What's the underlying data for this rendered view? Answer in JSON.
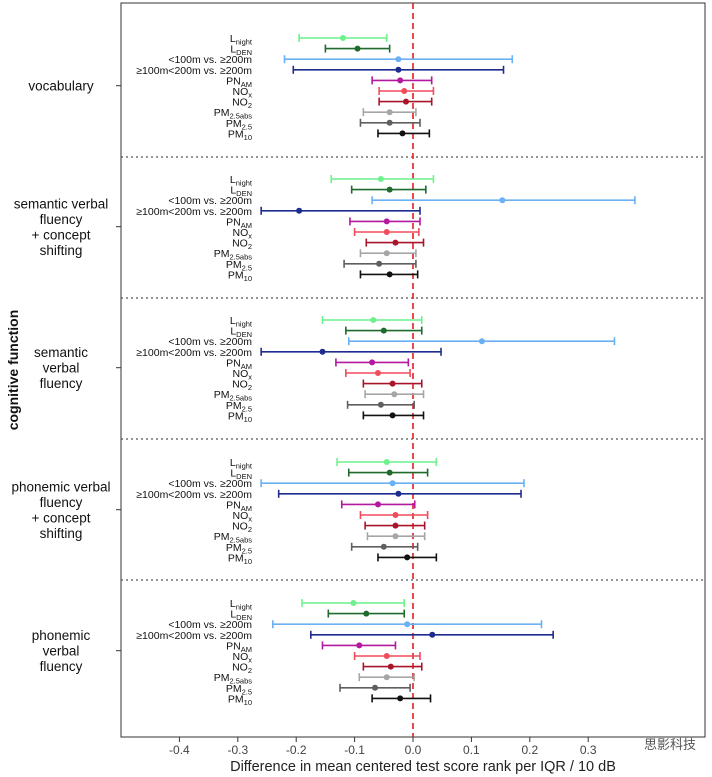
{
  "chart_data": {
    "type": "forest",
    "xlabel": "Difference in mean centered test score rank per IQR / 10 dB",
    "ylabel": "cognitive function",
    "xlim": [
      -0.5,
      0.5
    ],
    "xticks": [
      -0.4,
      -0.3,
      -0.2,
      -0.1,
      0.0,
      0.1,
      0.2,
      0.3
    ],
    "reference_line": 0,
    "exposures": [
      {
        "main": "L",
        "sub": "night",
        "color": "#6cf18c"
      },
      {
        "main": "L",
        "sub": "DEN",
        "color": "#1e6b2c"
      },
      {
        "main": "<100m vs. ≥200m",
        "sub": "",
        "color": "#6ab0f5"
      },
      {
        "main": "≥100m<200m vs. ≥200m",
        "sub": "",
        "color": "#1f2c8f"
      },
      {
        "main": "PN",
        "sub": "AM",
        "color": "#b4189e"
      },
      {
        "main": "NO",
        "sub": "x",
        "color": "#f04d5c"
      },
      {
        "main": "NO",
        "sub": "2",
        "color": "#a8152b"
      },
      {
        "main": "PM",
        "sub": "2.5abs",
        "color": "#a6a6a6"
      },
      {
        "main": "PM",
        "sub": "2.5",
        "color": "#5f5f5f"
      },
      {
        "main": "PM",
        "sub": "10",
        "color": "#111111"
      }
    ],
    "groups": [
      {
        "name": "vocabulary",
        "estimates": [
          -0.12,
          -0.095,
          -0.025,
          -0.025,
          -0.022,
          -0.015,
          -0.012,
          -0.04,
          -0.04,
          -0.018
        ],
        "ci_low": [
          -0.195,
          -0.15,
          -0.22,
          -0.205,
          -0.07,
          -0.058,
          -0.058,
          -0.085,
          -0.09,
          -0.06
        ],
        "ci_high": [
          -0.045,
          -0.04,
          0.17,
          0.155,
          0.032,
          0.035,
          0.032,
          0.005,
          0.012,
          0.028
        ]
      },
      {
        "name": "semantic verbal fluency + concept shifting",
        "estimates": [
          -0.055,
          -0.04,
          0.153,
          -0.195,
          -0.045,
          -0.045,
          -0.03,
          -0.045,
          -0.058,
          -0.04
        ],
        "ci_low": [
          -0.14,
          -0.105,
          -0.07,
          -0.26,
          -0.108,
          -0.1,
          -0.08,
          -0.09,
          -0.118,
          -0.09
        ],
        "ci_high": [
          0.035,
          0.022,
          0.38,
          0.012,
          0.012,
          0.01,
          0.018,
          0.005,
          0.005,
          0.008
        ]
      },
      {
        "name": "semantic verbal fluency",
        "estimates": [
          -0.068,
          -0.05,
          0.118,
          -0.155,
          -0.07,
          -0.06,
          -0.035,
          -0.032,
          -0.055,
          -0.035
        ],
        "ci_low": [
          -0.155,
          -0.115,
          -0.11,
          -0.26,
          -0.132,
          -0.115,
          -0.085,
          -0.082,
          -0.112,
          -0.085
        ],
        "ci_high": [
          0.015,
          0.015,
          0.345,
          0.048,
          -0.008,
          -0.005,
          0.015,
          0.018,
          0.002,
          0.018
        ]
      },
      {
        "name": "phonemic verbal fluency + concept shifting",
        "estimates": [
          -0.045,
          -0.04,
          -0.035,
          -0.025,
          -0.06,
          -0.03,
          -0.03,
          -0.03,
          -0.05,
          -0.01
        ],
        "ci_low": [
          -0.13,
          -0.11,
          -0.26,
          -0.23,
          -0.122,
          -0.09,
          -0.082,
          -0.078,
          -0.105,
          -0.06
        ],
        "ci_high": [
          0.04,
          0.025,
          0.19,
          0.185,
          0.003,
          0.025,
          0.02,
          0.02,
          0.008,
          0.04
        ]
      },
      {
        "name": "phonemic verbal fluency",
        "estimates": [
          -0.102,
          -0.08,
          -0.01,
          0.033,
          -0.092,
          -0.045,
          -0.038,
          -0.045,
          -0.065,
          -0.022
        ],
        "ci_low": [
          -0.19,
          -0.145,
          -0.24,
          -0.175,
          -0.155,
          -0.1,
          -0.085,
          -0.092,
          -0.125,
          -0.07
        ],
        "ci_high": [
          -0.015,
          -0.015,
          0.22,
          0.24,
          -0.03,
          0.012,
          0.015,
          0.002,
          -0.005,
          0.03
        ]
      }
    ]
  },
  "watermark": "思影科技"
}
